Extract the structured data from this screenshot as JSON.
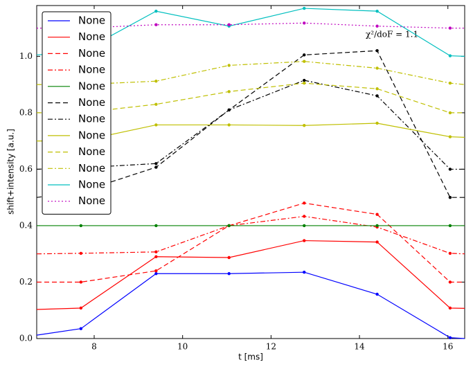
{
  "chart_data": {
    "type": "line",
    "xlabel": "t [ms]",
    "ylabel": "shift+intensity [a.u.]",
    "annotation": "χ²/doF = 1.1",
    "x": [
      6.7,
      7.7,
      9.4,
      11.05,
      12.75,
      14.4,
      16.05,
      16.38
    ],
    "xlim": [
      6.7,
      16.38
    ],
    "ylim": [
      0,
      1.18
    ],
    "xticks": [
      8,
      10,
      12,
      14,
      16
    ],
    "yticks": [
      {
        "value": 0,
        "label": "0.0"
      },
      {
        "value": 0.2,
        "label": "0.2"
      },
      {
        "value": 0.4,
        "label": "0.4"
      },
      {
        "value": 0.6,
        "label": "0.6"
      },
      {
        "value": 0.8,
        "label": "0.8"
      },
      {
        "value": 1.0,
        "label": "1.0"
      }
    ],
    "legend": "upper left",
    "markers": true,
    "series": [
      {
        "name": "None",
        "color": "#0000ff",
        "style": "solid",
        "values": [
          0.012,
          0.035,
          0.23,
          0.23,
          0.235,
          0.157,
          0.003,
          0
        ]
      },
      {
        "name": "None",
        "color": "#ff0000",
        "style": "solid",
        "values": [
          0.103,
          0.108,
          0.29,
          0.287,
          0.347,
          0.342,
          0.108,
          0.107
        ]
      },
      {
        "name": "None",
        "color": "#ff0000",
        "style": "dashed",
        "values": [
          0.2,
          0.2,
          0.24,
          0.4,
          0.48,
          0.44,
          0.2,
          0.2
        ]
      },
      {
        "name": "None",
        "color": "#ff0000",
        "style": "dashdot",
        "values": [
          0.3,
          0.302,
          0.307,
          0.4,
          0.433,
          0.395,
          0.302,
          0.3
        ]
      },
      {
        "name": "None",
        "color": "#008000",
        "style": "solid",
        "values": [
          0.4,
          0.4,
          0.4,
          0.4,
          0.4,
          0.4,
          0.4,
          0.4
        ]
      },
      {
        "name": "None",
        "color": "#000000",
        "style": "dashed",
        "values": [
          0.5,
          0.52,
          0.607,
          0.81,
          1.005,
          1.02,
          0.5,
          0.5
        ]
      },
      {
        "name": "None",
        "color": "#000000",
        "style": "dashdot",
        "values": [
          0.6,
          0.605,
          0.62,
          0.81,
          0.915,
          0.86,
          0.6,
          0.6
        ]
      },
      {
        "name": "None",
        "color": "#bfbf00",
        "style": "solid",
        "values": [
          0.7,
          0.7,
          0.757,
          0.757,
          0.755,
          0.763,
          0.715,
          0.713
        ]
      },
      {
        "name": "None",
        "color": "#bfbf00",
        "style": "dashed",
        "values": [
          0.8,
          0.8,
          0.83,
          0.875,
          0.905,
          0.885,
          0.8,
          0.8
        ]
      },
      {
        "name": "None",
        "color": "#bfbf00",
        "style": "dashdot",
        "values": [
          0.9,
          0.9,
          0.912,
          0.968,
          0.982,
          0.958,
          0.905,
          0.9
        ]
      },
      {
        "name": "None",
        "color": "#00bfbf",
        "style": "solid",
        "values": [
          1.005,
          1.015,
          1.16,
          1.107,
          1.17,
          1.16,
          1.002,
          1.0
        ]
      },
      {
        "name": "None",
        "color": "#bf00bf",
        "style": "dotted",
        "values": [
          1.1,
          1.1,
          1.112,
          1.112,
          1.118,
          1.107,
          1.1,
          1.1
        ]
      }
    ]
  }
}
